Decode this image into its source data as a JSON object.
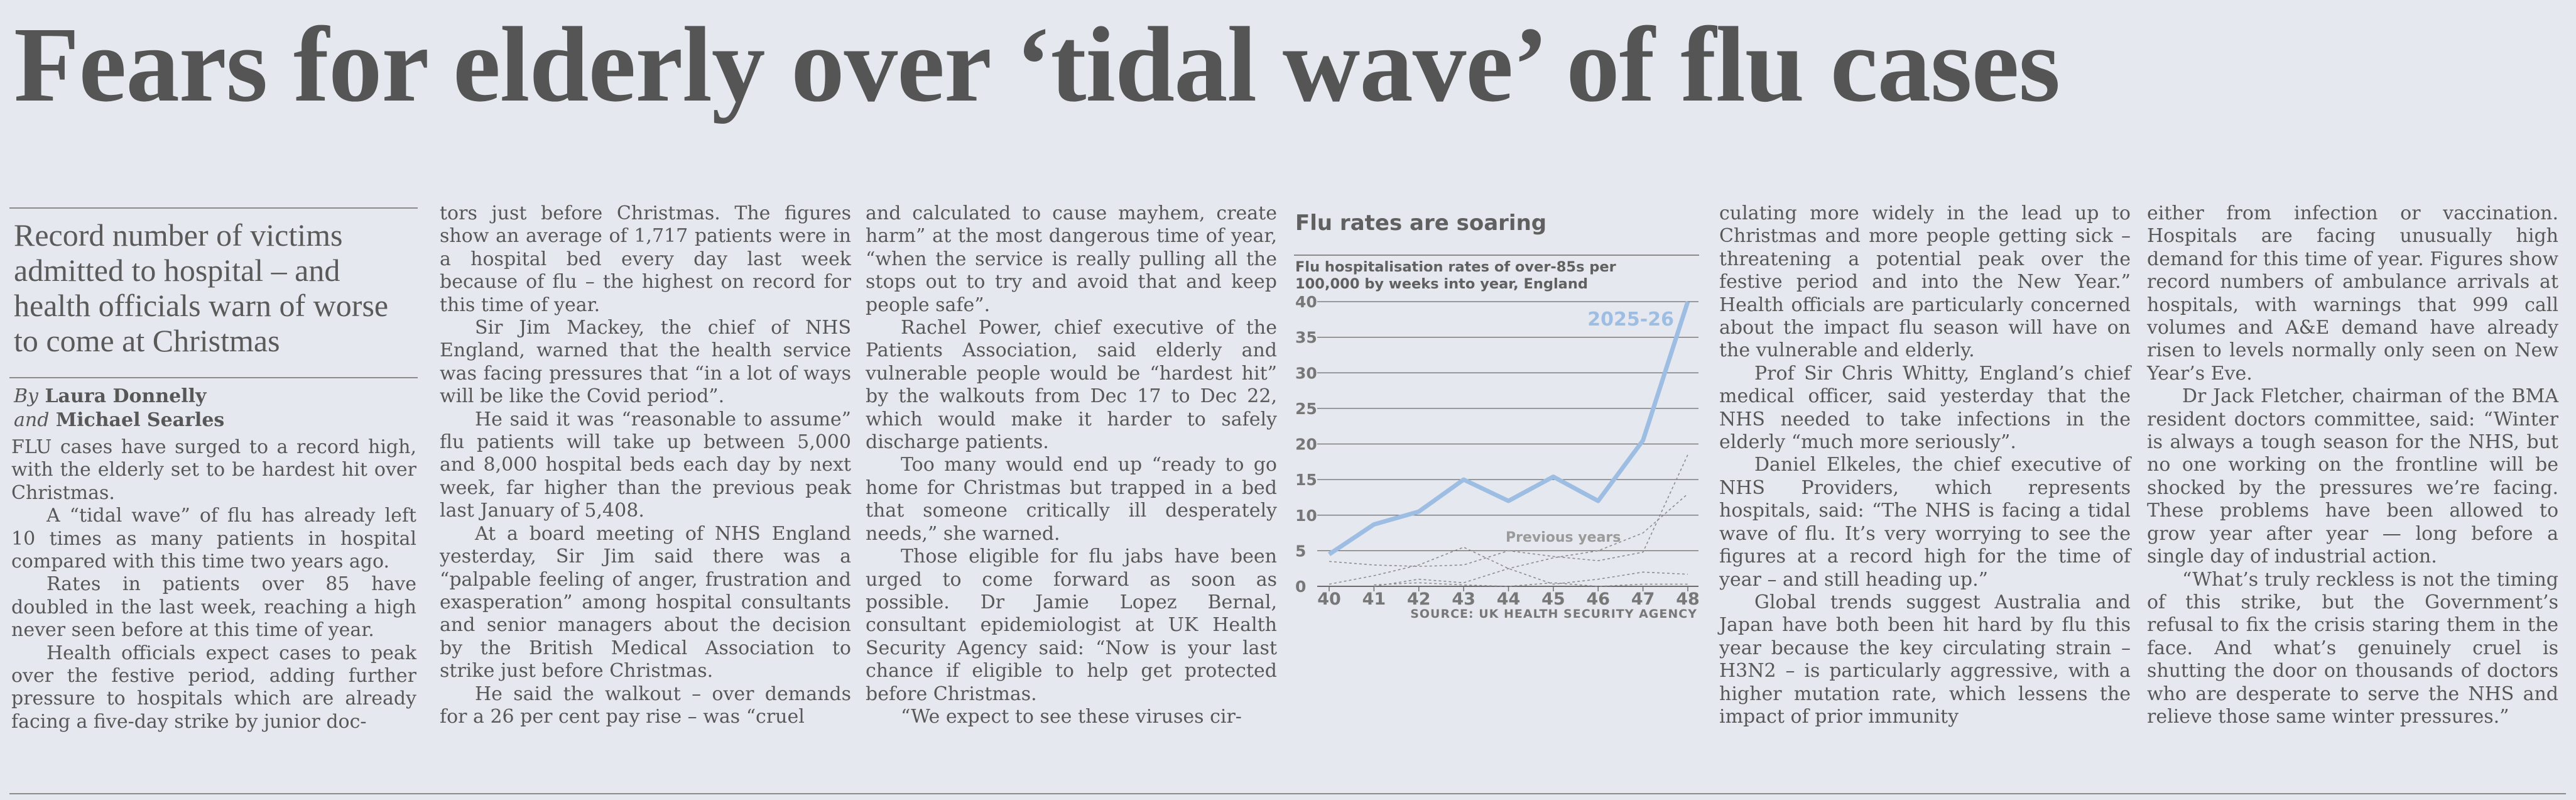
{
  "headline": "Fears for elderly over ‘tidal wave’ of flu cases",
  "standfirst": "Record number of victims admitted to hospital – and health officials warn of worse to come at Christmas",
  "byline": {
    "by": "By",
    "author1": "Laura Donnelly",
    "and": "and",
    "author2": "Michael Searles"
  },
  "columns": [
    {
      "paras": [
        "FLU cases have surged to a record high, with the elderly set to be hardest hit over Christmas.",
        "A “tidal wave” of flu has already left 10 times as many patients in hospital compared with this time two years ago.",
        "Rates in patients over 85 have doubled in the last week, reaching a high never seen before at this time of year.",
        "Health officials expect cases to peak over the festive period, adding further pressure to hospitals which are already facing a five-day strike by junior doc-"
      ]
    },
    {
      "paras": [
        "tors just before Christmas. The figures show an average of 1,717 patients were in a hospital bed every day last week because of flu – the highest on record for this time of year.",
        "Sir Jim Mackey, the chief of NHS England, warned that the health service was facing pressures that “in a lot of ways will be like the Covid period”.",
        "He said it was “reasonable to assume” flu patients will take up between 5,000 and 8,000 hospital beds each day by next week, far higher than the previous peak last January of 5,408.",
        "At a board meeting of NHS England yesterday, Sir Jim said there was a “palpable feeling of anger, frustration and exasperation” among hospital consultants and senior managers about the decision by the British Medical Association to strike just before Christmas.",
        "He said the walkout – over demands for a 26 per cent pay rise – was “cruel"
      ]
    },
    {
      "paras": [
        "and calculated to cause mayhem, create harm” at the most dangerous time of year, “when the service is really pulling all the stops out to try and avoid that and keep people safe”.",
        "Rachel Power, chief executive of the Patients Association, said elderly and vulnerable people would be “hardest hit” by the walkouts from Dec 17 to Dec 22, which would make it harder to safely discharge patients.",
        "Too many would end up “ready to go home for Christmas but trapped in a bed that someone critically ill desperately needs,” she warned.",
        "Those eligible for flu jabs have been urged to come forward as soon as possible. Dr Jamie Lopez Bernal, consultant epidemiologist at UK Health Security Agency said: “Now is your last chance if eligible to help get protected before Christmas.",
        "“We expect to see these viruses cir-"
      ]
    },
    {
      "paras": [
        "culating more widely in the lead up to Christmas and more people getting sick – threatening a potential peak over the festive period and into the New Year.” Health officials are particularly concerned about the impact flu season will have on the vulnerable and elderly.",
        "Prof Sir Chris Whitty, England’s chief medical officer, said yesterday that the NHS needed to take infections in the elderly “much more seriously”.",
        "Daniel Elkeles, the chief executive of NHS Providers, which represents hospitals, said: “The NHS is facing a tidal wave of flu. It’s very worrying to see the figures at a record high for the time of year – and still heading up.”",
        "Global trends suggest Australia and Japan have both been hit hard by flu this year because the key circulating strain – H3N2 – is particularly aggressive, with a higher mutation rate, which lessens the impact of prior immunity"
      ]
    },
    {
      "paras": [
        "either from infection or vaccination. Hospitals are facing unusually high demand for this time of year. Figures show record numbers of ambulance arrivals at hospitals, with warnings that 999 call volumes and A&E demand have already risen to levels normally only seen on New Year’s Eve.",
        "Dr Jack Fletcher, chairman of the BMA resident doctors committee, said: “Winter is always a tough season for the NHS, but no one working on the frontline will be shocked by the pressures we’re facing. These problems have been allowed to grow year after year — long before a single day of industrial action.",
        "“What’s truly reckless is not the timing of this strike, but the Government’s refusal to fix the crisis staring them in the face. And what’s genuinely cruel is shutting the door on thousands of doctors who are desperate to serve the NHS and relieve those same winter pressures.”"
      ]
    }
  ],
  "colors": {
    "paper": "#e5e9ef",
    "ink": "#575757",
    "series_current": "#9dbde2",
    "series_previous": "#8c8c8c"
  },
  "chart_data": {
    "type": "line",
    "title": "Flu rates are soaring",
    "subtitle": "Flu hospitalisation rates of over-85s per 100,000 by weeks into year, England",
    "source": "SOURCE: UK HEALTH SECURITY AGENCY",
    "x": [
      40,
      41,
      42,
      43,
      44,
      45,
      46,
      47,
      48
    ],
    "x_ticks": [
      "40",
      "41",
      "42",
      "43",
      "44",
      "45",
      "46",
      "47",
      "48"
    ],
    "y_ticks": [
      "0",
      "5",
      "10",
      "15",
      "20",
      "25",
      "30",
      "35",
      "40"
    ],
    "ylim": [
      0,
      40
    ],
    "grid": true,
    "series": [
      {
        "name": "2025-26",
        "values": [
          4.5,
          8.7,
          10.5,
          15,
          12,
          15.4,
          12,
          20.5,
          40
        ]
      },
      {
        "values": [
          3.5,
          3,
          2.8,
          3,
          5,
          4.2,
          3.6,
          4.8,
          18.5
        ]
      },
      {
        "values": [
          0.3,
          1.5,
          3,
          5.5,
          2.5,
          0.3,
          1,
          2,
          1.7
        ]
      },
      {
        "values": [
          null,
          0,
          1,
          0.5,
          2.5,
          4,
          5,
          7.5,
          13
        ]
      },
      {
        "values": [
          null,
          0.2,
          0.5,
          0.2,
          0,
          0.5,
          0,
          0.3,
          0.3
        ]
      }
    ],
    "annotation_previous": "Previous years"
  }
}
